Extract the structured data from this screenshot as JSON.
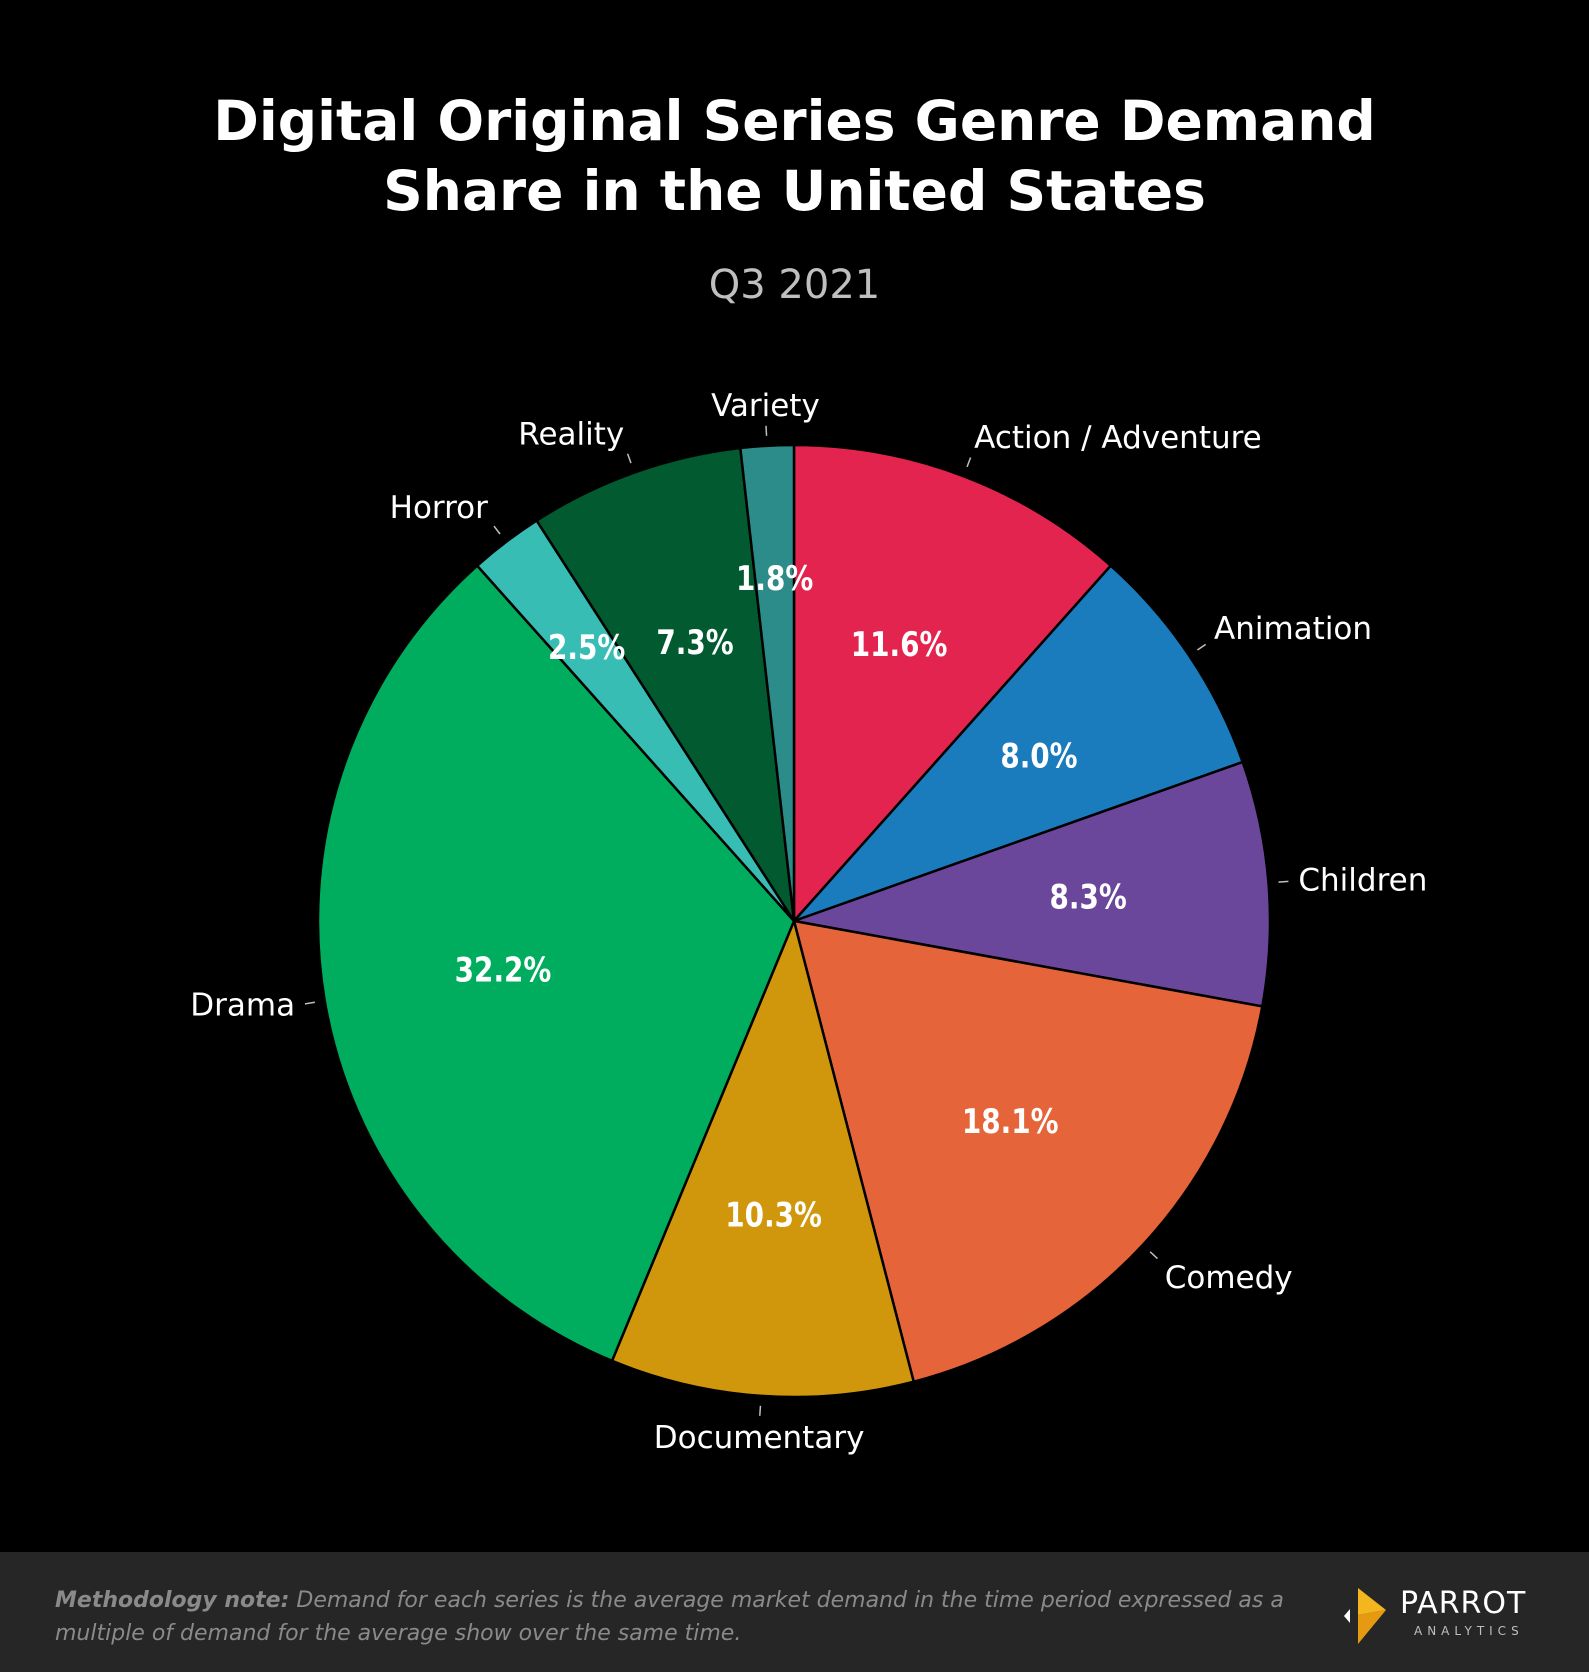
{
  "chart_data": {
    "type": "pie",
    "title_lines": [
      "Digital Original Series Genre Demand",
      "Share in the United States"
    ],
    "subtitle": "Q3 2021",
    "slices": [
      {
        "label": "Action / Adventure",
        "value": 11.6,
        "display": "11.6%",
        "color": "#E2244E"
      },
      {
        "label": "Animation",
        "value": 8.0,
        "display": "8.0%",
        "color": "#1A7CBC"
      },
      {
        "label": "Children",
        "value": 8.3,
        "display": "8.3%",
        "color": "#6B479C"
      },
      {
        "label": "Comedy",
        "value": 18.1,
        "display": "18.1%",
        "color": "#E5643A"
      },
      {
        "label": "Documentary",
        "value": 10.3,
        "display": "10.3%",
        "color": "#D0960C"
      },
      {
        "label": "Drama",
        "value": 32.2,
        "display": "32.2%",
        "color": "#00AD5E"
      },
      {
        "label": "Horror",
        "value": 2.5,
        "display": "2.5%",
        "color": "#38BDB4"
      },
      {
        "label": "Reality",
        "value": 7.3,
        "display": "7.3%",
        "color": "#015A30"
      },
      {
        "label": "Variety",
        "value": 1.8,
        "display": "1.8%",
        "color": "#2B8C89"
      }
    ]
  },
  "footer": {
    "note_bold": "Methodology note:",
    "note_text": " Demand for each series is the average market demand in the time period expressed as a multiple of demand for the average show over the same time."
  },
  "logo": {
    "name": "PARROT",
    "sub": "ANALYTICS"
  }
}
